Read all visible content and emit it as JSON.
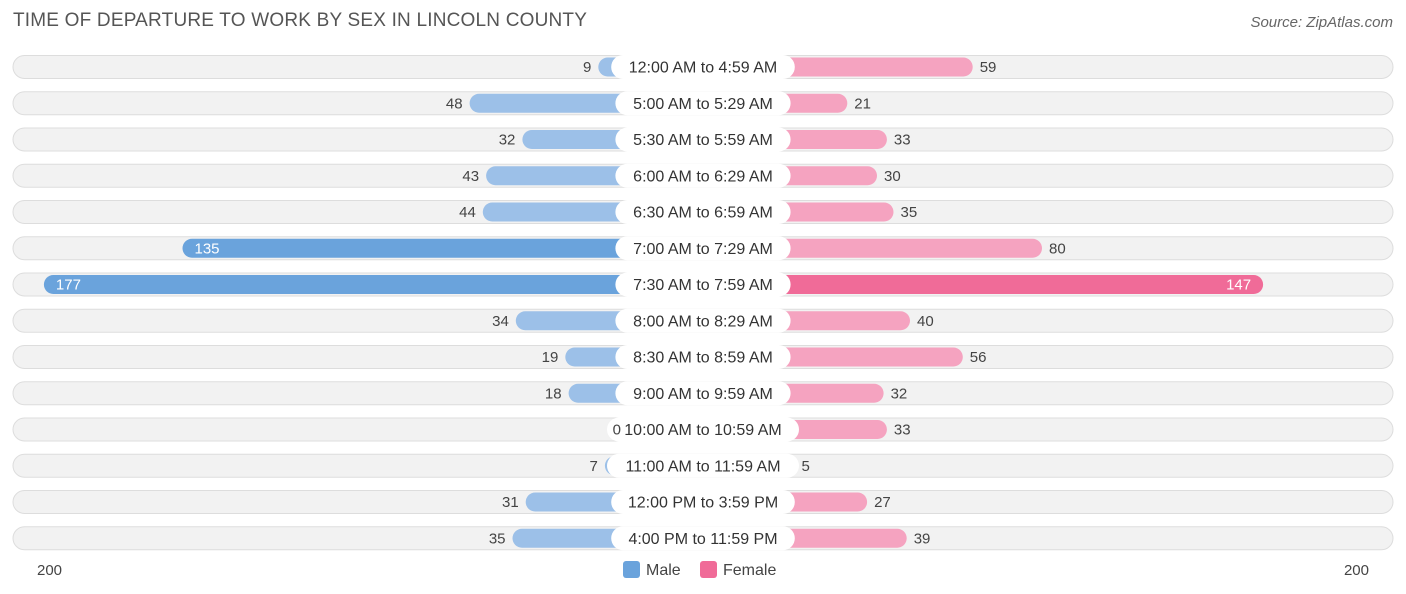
{
  "chart_data": {
    "type": "bar",
    "orientation": "horizontal-diverging",
    "title": "TIME OF DEPARTURE TO WORK BY SEX IN LINCOLN COUNTY",
    "source": "Source: ZipAtlas.com",
    "categories": [
      "12:00 AM to 4:59 AM",
      "5:00 AM to 5:29 AM",
      "5:30 AM to 5:59 AM",
      "6:00 AM to 6:29 AM",
      "6:30 AM to 6:59 AM",
      "7:00 AM to 7:29 AM",
      "7:30 AM to 7:59 AM",
      "8:00 AM to 8:29 AM",
      "8:30 AM to 8:59 AM",
      "9:00 AM to 9:59 AM",
      "10:00 AM to 10:59 AM",
      "11:00 AM to 11:59 AM",
      "12:00 PM to 3:59 PM",
      "4:00 PM to 11:59 PM"
    ],
    "series": [
      {
        "name": "Male",
        "values": [
          9,
          48,
          32,
          43,
          44,
          135,
          177,
          34,
          19,
          18,
          0,
          7,
          31,
          35
        ]
      },
      {
        "name": "Female",
        "values": [
          59,
          21,
          33,
          30,
          35,
          80,
          147,
          40,
          56,
          32,
          33,
          5,
          27,
          39
        ]
      }
    ],
    "axis_range": [
      200,
      200
    ],
    "axis_left_label": "200",
    "axis_right_label": "200",
    "legend_position": "bottom-center",
    "colors": {
      "male": "#9cc0e8",
      "male_strong": "#6aa3dc",
      "female": "#f5a3c0",
      "female_strong": "#f06b98",
      "row_bg": "#f2f2f2",
      "row_border": "#dddddd"
    }
  }
}
